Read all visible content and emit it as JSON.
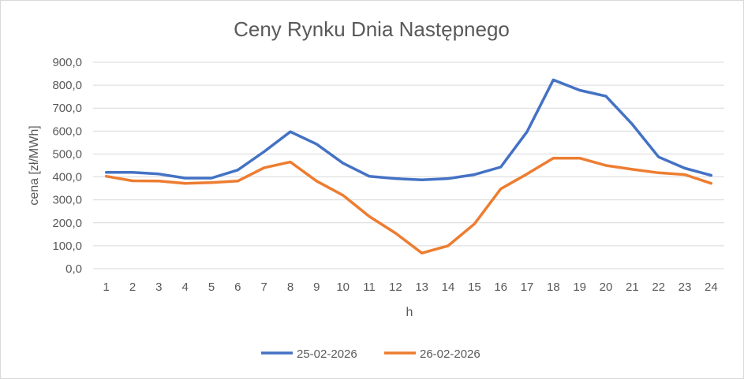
{
  "chart_data": {
    "type": "line",
    "title": "Ceny Rynku Dnia Następnego",
    "xlabel": "h",
    "ylabel": "cena [zł/MWh]",
    "ylim": [
      0,
      900
    ],
    "ytick_step": 100,
    "ytick_labels": [
      "0,0",
      "100,0",
      "200,0",
      "300,0",
      "400,0",
      "500,0",
      "600,0",
      "700,0",
      "800,0",
      "900,0"
    ],
    "grid": true,
    "legend": "bottom",
    "categories": [
      "1",
      "2",
      "3",
      "4",
      "5",
      "6",
      "7",
      "8",
      "9",
      "10",
      "11",
      "12",
      "13",
      "14",
      "15",
      "16",
      "17",
      "18",
      "19",
      "20",
      "21",
      "22",
      "23",
      "24"
    ],
    "series": [
      {
        "name": "25-02-2026",
        "color": "#4472c4",
        "values": [
          420,
          420,
          413,
          395,
          395,
          430,
          510,
          597,
          543,
          460,
          403,
          393,
          387,
          393,
          410,
          443,
          597,
          823,
          778,
          752,
          630,
          487,
          438,
          407
        ]
      },
      {
        "name": "26-02-2026",
        "color": "#ed7d31",
        "values": [
          403,
          383,
          382,
          372,
          375,
          382,
          440,
          465,
          382,
          320,
          228,
          155,
          68,
          100,
          195,
          348,
          413,
          482,
          482,
          450,
          433,
          418,
          410,
          372
        ]
      }
    ]
  }
}
